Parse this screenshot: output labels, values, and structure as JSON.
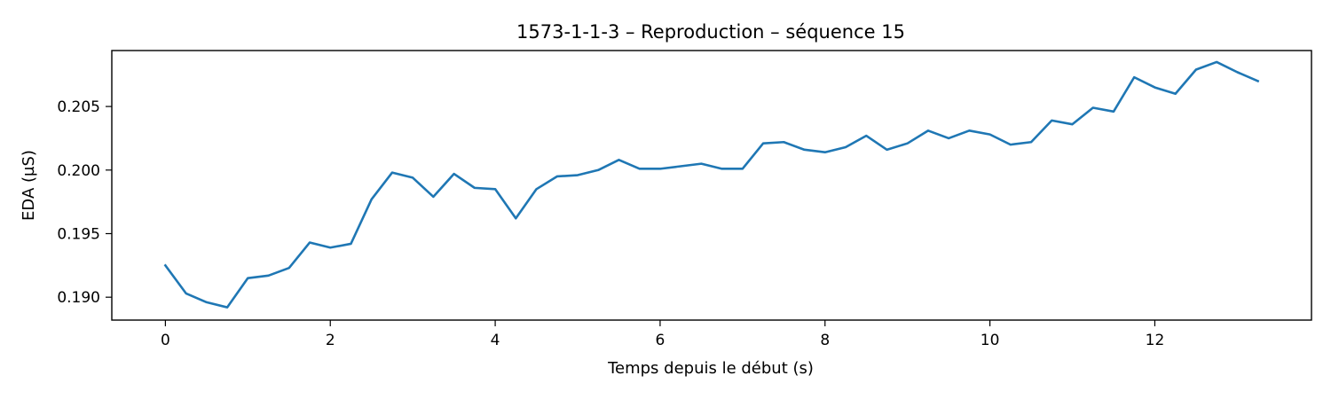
{
  "chart_data": {
    "type": "line",
    "title": "1573-1-1-3 – Reproduction – séquence 15",
    "xlabel": "Temps depuis le début (s)",
    "ylabel": "EDA (µS)",
    "xlim": [
      -0.65,
      13.9
    ],
    "ylim": [
      0.1882,
      0.2094
    ],
    "xticks": [
      0,
      2,
      4,
      6,
      8,
      10,
      12
    ],
    "xtick_labels": [
      "0",
      "2",
      "4",
      "6",
      "8",
      "10",
      "12"
    ],
    "yticks": [
      0.19,
      0.195,
      0.2,
      0.205
    ],
    "ytick_labels": [
      "0.190",
      "0.195",
      "0.200",
      "0.205"
    ],
    "grid": false,
    "line_color": "#1f77b4",
    "series": [
      {
        "x": [
          0,
          0.25,
          0.5,
          0.75,
          1.0,
          1.25,
          1.5,
          1.75,
          2.0,
          2.25,
          2.5,
          2.75,
          3.0,
          3.25,
          3.5,
          3.75,
          4.0,
          4.25,
          4.5,
          4.75,
          5.0,
          5.25,
          5.5,
          5.75,
          6.0,
          6.25,
          6.5,
          6.75,
          7.0,
          7.25,
          7.5,
          7.75,
          8.0,
          8.25,
          8.5,
          8.75,
          9.0,
          9.25,
          9.5,
          9.75,
          10.0,
          10.25,
          10.5,
          10.75,
          11.0,
          11.25,
          11.5,
          11.75,
          12.0,
          12.25,
          12.5,
          12.75,
          13.0,
          13.25
        ],
        "y": [
          0.1925,
          0.1903,
          0.1896,
          0.1892,
          0.1915,
          0.1917,
          0.1923,
          0.1943,
          0.1939,
          0.1942,
          0.1977,
          0.1998,
          0.1994,
          0.1979,
          0.1997,
          0.1986,
          0.1985,
          0.1962,
          0.1985,
          0.1995,
          0.1996,
          0.2,
          0.2008,
          0.2001,
          0.2001,
          0.2003,
          0.2005,
          0.2001,
          0.2001,
          0.2021,
          0.2022,
          0.2016,
          0.2014,
          0.2018,
          0.2027,
          0.2016,
          0.2021,
          0.2031,
          0.2025,
          0.2031,
          0.2028,
          0.202,
          0.2022,
          0.2039,
          0.2036,
          0.2049,
          0.2046,
          0.2073,
          0.2065,
          0.206,
          0.2079,
          0.2085,
          0.2077,
          0.207
        ]
      }
    ]
  }
}
